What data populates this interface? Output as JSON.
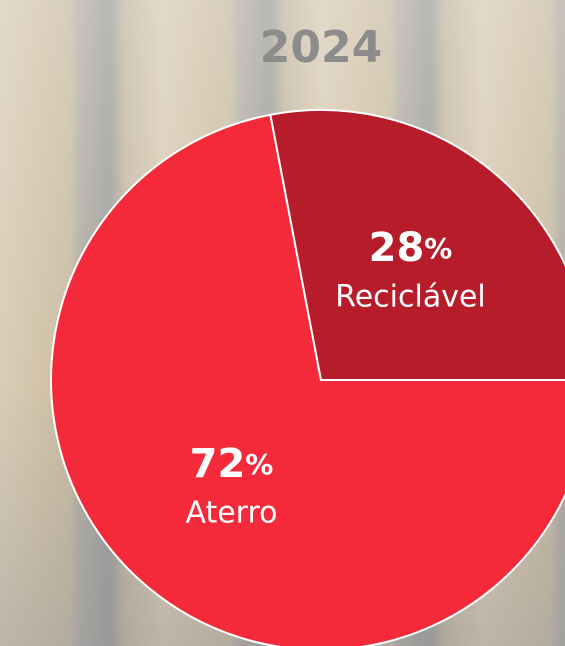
{
  "chart_data": {
    "type": "pie",
    "title": "2024",
    "categories": [
      "Aterro",
      "Reciclável"
    ],
    "values": [
      72,
      28
    ],
    "value_suffix": "%",
    "colors": [
      "#f42a3a",
      "#b71c2a"
    ]
  }
}
